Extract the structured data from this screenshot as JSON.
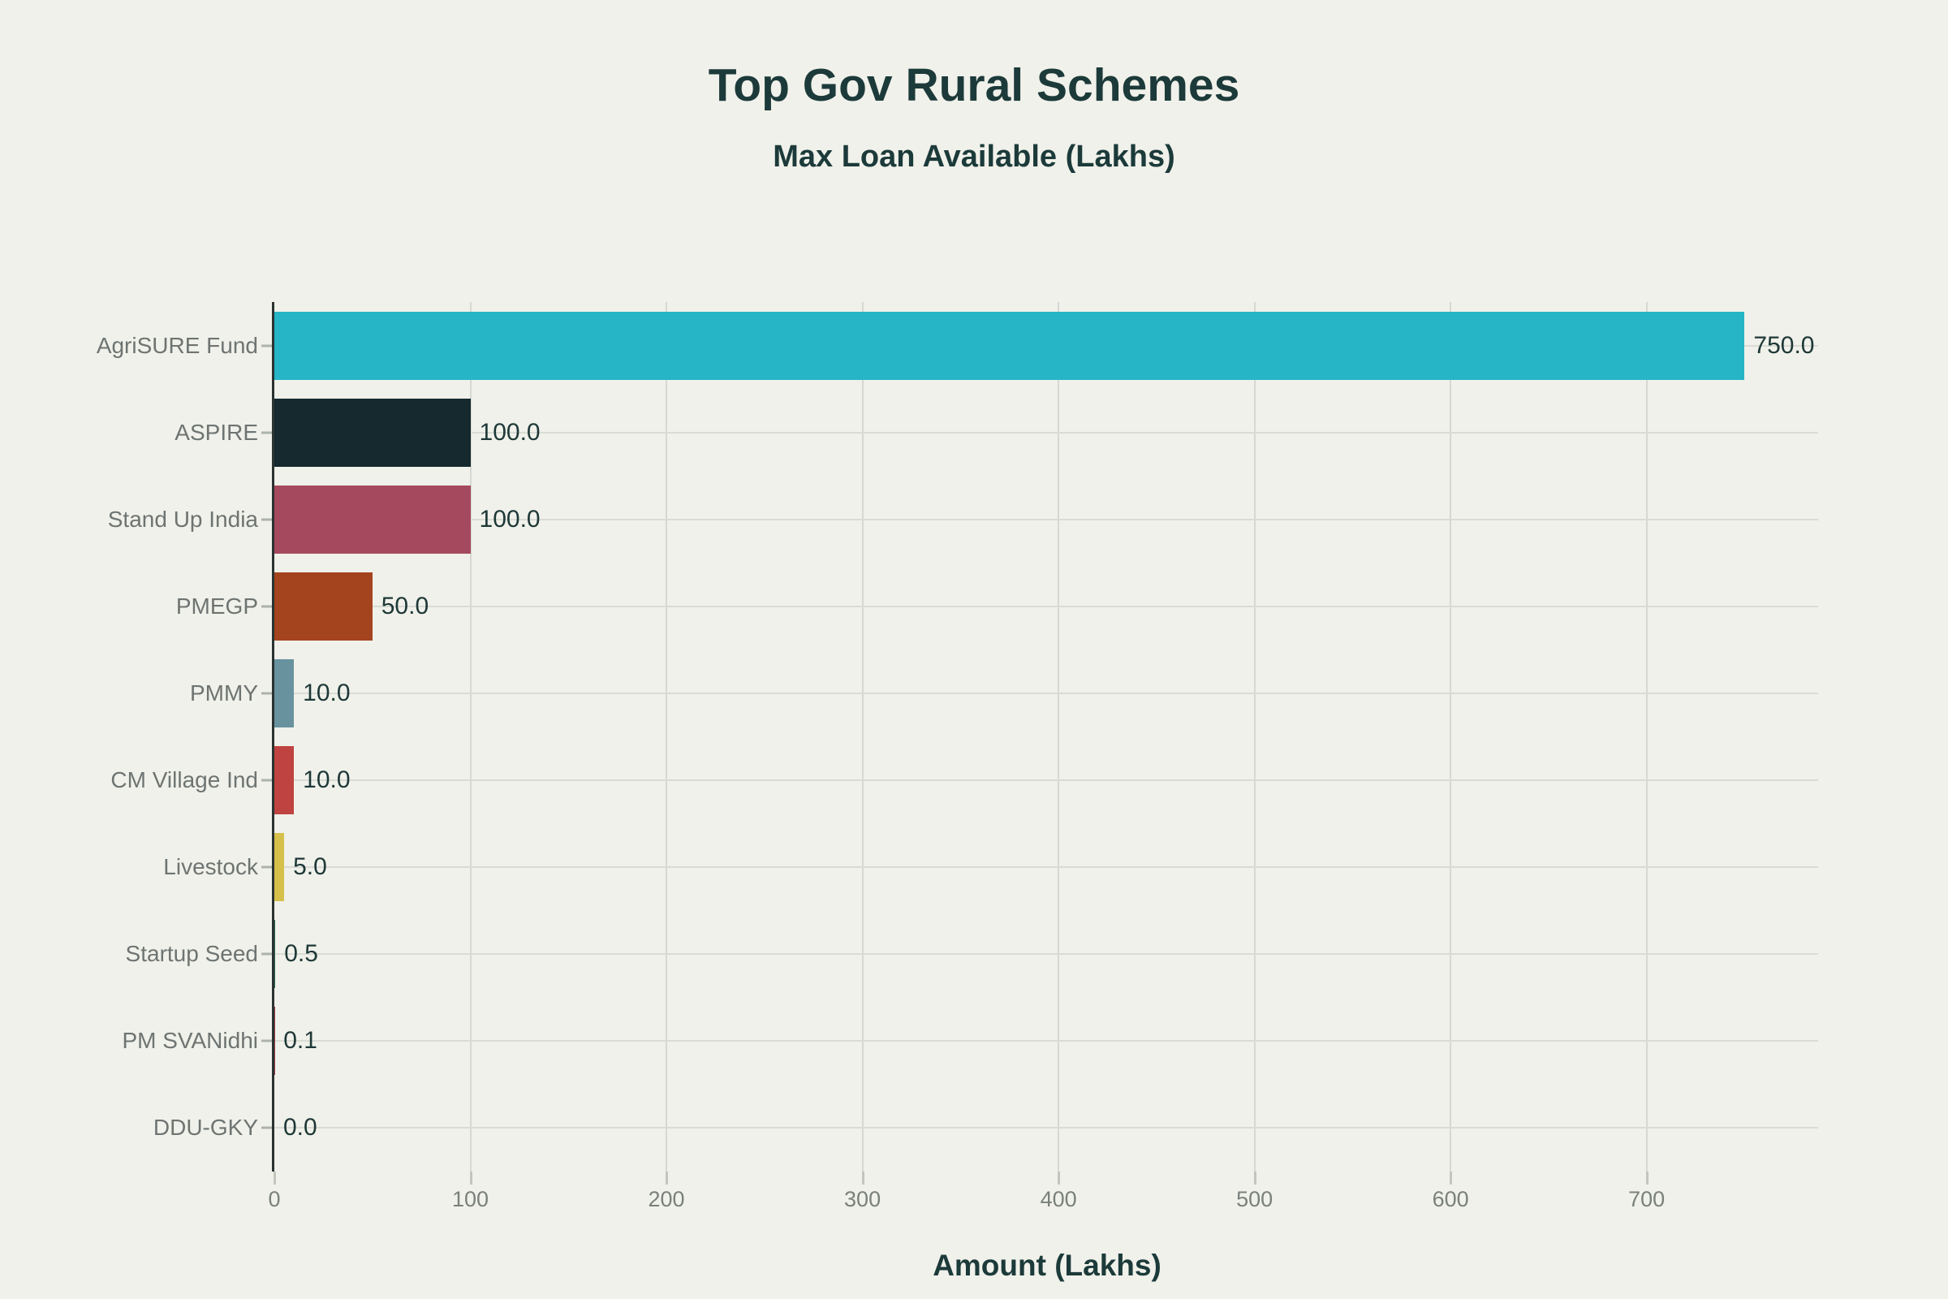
{
  "header": {
    "title": "Top Gov Rural Schemes",
    "subtitle": "Max Loan Available (Lakhs)"
  },
  "colors": {
    "background": "#f0f1ea",
    "title_text": "#1c3a3a",
    "category_label_text": "#6e7472",
    "value_label_text": "#1d3837",
    "tick_label_text": "#7a807c",
    "gridline": "#d7d9d3",
    "axis_spine": "#2a3331"
  },
  "chart_data": {
    "type": "bar",
    "orientation": "horizontal",
    "title": "Top Gov Rural Schemes",
    "subtitle": "Max Loan Available (Lakhs)",
    "xlabel": "Amount (Lakhs)",
    "ylabel": "",
    "categories": [
      "AgriSURE Fund",
      "ASPIRE",
      "Stand Up India",
      "PMEGP",
      "PMMY",
      "CM Village Ind",
      "Livestock",
      "Startup Seed",
      "PM SVANidhi",
      "DDU-GKY"
    ],
    "values": [
      750.0,
      100.0,
      100.0,
      50.0,
      10.0,
      10.0,
      5.0,
      0.5,
      0.1,
      0.0
    ],
    "value_labels": [
      "750.0",
      "100.0",
      "100.0",
      "50.0",
      "10.0",
      "10.0",
      "5.0",
      "0.5",
      "0.1",
      "0.0"
    ],
    "bar_colors": [
      "#25b5c7",
      "#15292f",
      "#a54a5e",
      "#a4441f",
      "#68929e",
      "#bf4340",
      "#d6c04c",
      "#2e6b52",
      "#9e3d46",
      "#68929e"
    ],
    "x_ticks": [
      0,
      100,
      200,
      300,
      400,
      500,
      600,
      700
    ],
    "xlim": [
      0,
      787.5
    ],
    "grid": true,
    "legend": null
  }
}
